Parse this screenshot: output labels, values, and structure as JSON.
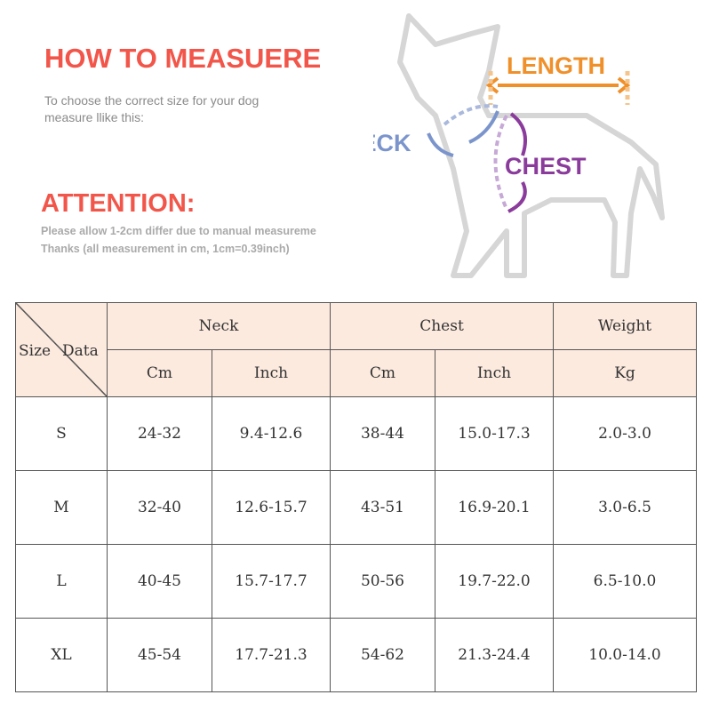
{
  "header": {
    "title": "HOW TO MEASUERE",
    "subtitle": [
      "To choose the correct size for your dog",
      "measure llike this:"
    ]
  },
  "attention": {
    "title": "ATTENTION:",
    "lines": [
      "Please allow 1-2cm differ due to manual measureme",
      "Thanks (all measurement in cm, 1cm=0.39inch)"
    ]
  },
  "diagram": {
    "length": "LENGTH",
    "neck": "NECK",
    "chest": "CHEST"
  },
  "table": {
    "corner": [
      "Size",
      "Data"
    ],
    "groups": [
      "Neck",
      "Chest",
      "Weight"
    ],
    "units": [
      "Cm",
      "Inch",
      "Cm",
      "Inch",
      "Kg"
    ],
    "rows": [
      [
        "S",
        "24-32",
        "9.4-12.6",
        "38-44",
        "15.0-17.3",
        "2.0-3.0"
      ],
      [
        "M",
        "32-40",
        "12.6-15.7",
        "43-51",
        "16.9-20.1",
        "3.0-6.5"
      ],
      [
        "L",
        "40-45",
        "15.7-17.7",
        "50-56",
        "19.7-22.0",
        "6.5-10.0"
      ],
      [
        "XL",
        "45-54",
        "17.7-21.3",
        "54-62",
        "21.3-24.4",
        "10.0-14.0"
      ]
    ]
  }
}
